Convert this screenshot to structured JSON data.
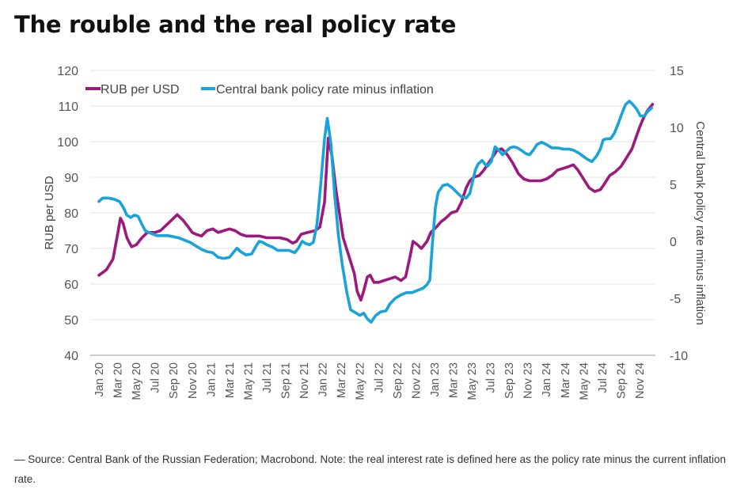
{
  "title": "The rouble and the real policy rate",
  "source": "— Source: Central Bank of the Russian Federation; Macrobond. Note: the real interest rate is defined here as the policy rate minus the current inflation rate.",
  "chart_data": {
    "type": "line",
    "x": [
      "Jan 20",
      "Mar 20",
      "May 20",
      "Jul 20",
      "Sep 20",
      "Nov 20",
      "Jan 21",
      "Mar 21",
      "May 21",
      "Jul 21",
      "Sep 21",
      "Nov 21",
      "Jan 22",
      "Mar 22",
      "May 22",
      "Jul 22",
      "Sep 22",
      "Nov 22",
      "Jan 23",
      "Mar 23",
      "May 23",
      "Jul 23",
      "Sep 23",
      "Nov 23",
      "Jan 24",
      "Mar 24",
      "May 24",
      "Jul 24",
      "Sep 24",
      "Nov 24"
    ],
    "y_left": {
      "label": "RUB per USD",
      "ylim": [
        40,
        120
      ],
      "ticks": [
        40,
        50,
        60,
        70,
        80,
        90,
        100,
        110,
        120
      ]
    },
    "y_right": {
      "label": "Central bank policy rate minus inflation",
      "ylim": [
        -10,
        15
      ],
      "ticks": [
        -10,
        -5,
        0,
        5,
        10,
        15
      ]
    },
    "grid": true,
    "legend_position": "top-left",
    "series": [
      {
        "name": "RUB per USD",
        "axis": "left",
        "color": "#9c1a7e",
        "points": [
          [
            0,
            62.5
          ],
          [
            0.4,
            64
          ],
          [
            0.75,
            67
          ],
          [
            1.0,
            74
          ],
          [
            1.15,
            78.5
          ],
          [
            1.3,
            77
          ],
          [
            1.5,
            73
          ],
          [
            1.75,
            70.5
          ],
          [
            2.0,
            71
          ],
          [
            2.3,
            73
          ],
          [
            2.6,
            74.5
          ],
          [
            3.0,
            74.5
          ],
          [
            3.3,
            75
          ],
          [
            3.6,
            76.5
          ],
          [
            4.0,
            78.5
          ],
          [
            4.2,
            79.5
          ],
          [
            4.5,
            78
          ],
          [
            4.8,
            76
          ],
          [
            5.0,
            74.5
          ],
          [
            5.2,
            74
          ],
          [
            5.5,
            73.5
          ],
          [
            5.8,
            75
          ],
          [
            6.1,
            75.5
          ],
          [
            6.4,
            74.5
          ],
          [
            6.7,
            75
          ],
          [
            7.0,
            75.5
          ],
          [
            7.3,
            75
          ],
          [
            7.6,
            74
          ],
          [
            7.9,
            73.5
          ],
          [
            8.2,
            73.5
          ],
          [
            8.6,
            73.5
          ],
          [
            9.0,
            73
          ],
          [
            9.3,
            73
          ],
          [
            9.7,
            73
          ],
          [
            10.1,
            72.5
          ],
          [
            10.4,
            71.5
          ],
          [
            10.6,
            72
          ],
          [
            10.85,
            74
          ],
          [
            11.2,
            74.5
          ],
          [
            11.6,
            75
          ],
          [
            11.85,
            76
          ],
          [
            12.1,
            83
          ],
          [
            12.3,
            101
          ],
          [
            12.5,
            96
          ],
          [
            12.7,
            87
          ],
          [
            12.9,
            80
          ],
          [
            13.1,
            73
          ],
          [
            13.4,
            68
          ],
          [
            13.7,
            63
          ],
          [
            13.85,
            58
          ],
          [
            14.05,
            55.5
          ],
          [
            14.2,
            58
          ],
          [
            14.4,
            62
          ],
          [
            14.55,
            62.5
          ],
          [
            14.75,
            60.5
          ],
          [
            15.0,
            60.5
          ],
          [
            15.3,
            61
          ],
          [
            15.6,
            61.5
          ],
          [
            15.9,
            62
          ],
          [
            16.2,
            61
          ],
          [
            16.45,
            62
          ],
          [
            16.7,
            68
          ],
          [
            16.85,
            72
          ],
          [
            17.1,
            71
          ],
          [
            17.3,
            70
          ],
          [
            17.6,
            72
          ],
          [
            17.8,
            74.5
          ],
          [
            18.1,
            76
          ],
          [
            18.35,
            77.5
          ],
          [
            18.6,
            78.5
          ],
          [
            18.9,
            80
          ],
          [
            19.2,
            80.5
          ],
          [
            19.45,
            83
          ],
          [
            19.7,
            87
          ],
          [
            19.9,
            89
          ],
          [
            20.1,
            90
          ],
          [
            20.4,
            90.5
          ],
          [
            20.65,
            92
          ],
          [
            20.9,
            94
          ],
          [
            21.1,
            95.5
          ],
          [
            21.35,
            97.5
          ],
          [
            21.6,
            98
          ],
          [
            21.8,
            97
          ],
          [
            21.95,
            96
          ],
          [
            22.2,
            94
          ],
          [
            22.5,
            91
          ],
          [
            22.8,
            89.5
          ],
          [
            23.1,
            89
          ],
          [
            23.4,
            89
          ],
          [
            23.7,
            89
          ],
          [
            24.0,
            89.5
          ],
          [
            24.3,
            90.5
          ],
          [
            24.6,
            92
          ],
          [
            24.9,
            92.5
          ],
          [
            25.2,
            93
          ],
          [
            25.45,
            93.5
          ],
          [
            25.7,
            92
          ],
          [
            26.0,
            89.5
          ],
          [
            26.3,
            87
          ],
          [
            26.6,
            86
          ],
          [
            26.9,
            86.5
          ],
          [
            27.1,
            88
          ],
          [
            27.4,
            90.5
          ],
          [
            27.7,
            91.5
          ],
          [
            28.0,
            93
          ],
          [
            28.3,
            95.5
          ],
          [
            28.6,
            98
          ],
          [
            28.8,
            101
          ],
          [
            29.0,
            104
          ],
          [
            29.2,
            106.5
          ],
          [
            29.4,
            108.5
          ],
          [
            29.7,
            110.5
          ]
        ]
      },
      {
        "name": "Central bank policy rate minus inflation",
        "axis": "right",
        "color": "#1aa3d9",
        "points": [
          [
            0,
            3.5
          ],
          [
            0.2,
            3.8
          ],
          [
            0.5,
            3.8
          ],
          [
            0.8,
            3.7
          ],
          [
            1.1,
            3.5
          ],
          [
            1.3,
            3
          ],
          [
            1.5,
            2.3
          ],
          [
            1.7,
            2.1
          ],
          [
            1.9,
            2.3
          ],
          [
            2.1,
            2.2
          ],
          [
            2.3,
            1.5
          ],
          [
            2.5,
            0.9
          ],
          [
            2.8,
            0.7
          ],
          [
            3.1,
            0.5
          ],
          [
            3.4,
            0.5
          ],
          [
            3.7,
            0.5
          ],
          [
            4.0,
            0.4
          ],
          [
            4.3,
            0.3
          ],
          [
            4.6,
            0.1
          ],
          [
            4.9,
            -0.1
          ],
          [
            5.2,
            -0.4
          ],
          [
            5.5,
            -0.7
          ],
          [
            5.8,
            -0.9
          ],
          [
            6.1,
            -1.0
          ],
          [
            6.4,
            -1.4
          ],
          [
            6.7,
            -1.5
          ],
          [
            7.0,
            -1.4
          ],
          [
            7.2,
            -1.0
          ],
          [
            7.4,
            -0.6
          ],
          [
            7.6,
            -0.9
          ],
          [
            7.9,
            -1.2
          ],
          [
            8.2,
            -1.1
          ],
          [
            8.4,
            -0.5
          ],
          [
            8.6,
            0
          ],
          [
            8.8,
            -0.1
          ],
          [
            9.0,
            -0.3
          ],
          [
            9.3,
            -0.5
          ],
          [
            9.6,
            -0.8
          ],
          [
            9.9,
            -0.8
          ],
          [
            10.2,
            -0.8
          ],
          [
            10.5,
            -1.0
          ],
          [
            10.7,
            -0.6
          ],
          [
            10.9,
            0
          ],
          [
            11.1,
            -0.2
          ],
          [
            11.3,
            -0.3
          ],
          [
            11.5,
            -0.1
          ],
          [
            11.7,
            1.5
          ],
          [
            11.9,
            5
          ],
          [
            12.1,
            9
          ],
          [
            12.25,
            10.8
          ],
          [
            12.45,
            8.5
          ],
          [
            12.65,
            4
          ],
          [
            12.85,
            0.5
          ],
          [
            13.05,
            -2
          ],
          [
            13.3,
            -4.5
          ],
          [
            13.5,
            -6.0
          ],
          [
            13.8,
            -6.3
          ],
          [
            14.0,
            -6.5
          ],
          [
            14.2,
            -6.3
          ],
          [
            14.4,
            -6.8
          ],
          [
            14.6,
            -7.1
          ],
          [
            14.85,
            -6.5
          ],
          [
            15.1,
            -6.2
          ],
          [
            15.4,
            -6.1
          ],
          [
            15.6,
            -5.5
          ],
          [
            15.9,
            -5.0
          ],
          [
            16.2,
            -4.7
          ],
          [
            16.5,
            -4.5
          ],
          [
            16.8,
            -4.5
          ],
          [
            17.1,
            -4.3
          ],
          [
            17.4,
            -4.1
          ],
          [
            17.6,
            -3.8
          ],
          [
            17.75,
            -3.4
          ],
          [
            17.9,
            0
          ],
          [
            18.05,
            3
          ],
          [
            18.2,
            4.3
          ],
          [
            18.45,
            4.9
          ],
          [
            18.7,
            5.0
          ],
          [
            18.95,
            4.7
          ],
          [
            19.2,
            4.3
          ],
          [
            19.45,
            3.9
          ],
          [
            19.7,
            3.8
          ],
          [
            19.9,
            4.2
          ],
          [
            20.05,
            5.3
          ],
          [
            20.2,
            6.3
          ],
          [
            20.35,
            6.8
          ],
          [
            20.55,
            7.1
          ],
          [
            20.7,
            6.8
          ],
          [
            20.85,
            6.6
          ],
          [
            21.05,
            7.0
          ],
          [
            21.25,
            8.3
          ],
          [
            21.45,
            8.0
          ],
          [
            21.65,
            7.6
          ],
          [
            21.85,
            7.9
          ],
          [
            22.05,
            8.2
          ],
          [
            22.25,
            8.3
          ],
          [
            22.45,
            8.2
          ],
          [
            22.65,
            8.0
          ],
          [
            22.9,
            7.7
          ],
          [
            23.1,
            7.6
          ],
          [
            23.3,
            8.0
          ],
          [
            23.5,
            8.5
          ],
          [
            23.75,
            8.7
          ],
          [
            24.0,
            8.5
          ],
          [
            24.3,
            8.2
          ],
          [
            24.6,
            8.2
          ],
          [
            24.9,
            8.1
          ],
          [
            25.2,
            8.1
          ],
          [
            25.45,
            8.0
          ],
          [
            25.7,
            7.8
          ],
          [
            25.95,
            7.5
          ],
          [
            26.2,
            7.2
          ],
          [
            26.45,
            7.0
          ],
          [
            26.7,
            7.5
          ],
          [
            26.9,
            8.1
          ],
          [
            27.05,
            8.9
          ],
          [
            27.25,
            9.0
          ],
          [
            27.45,
            9.0
          ],
          [
            27.65,
            9.5
          ],
          [
            27.85,
            10.3
          ],
          [
            28.05,
            11.2
          ],
          [
            28.25,
            12.0
          ],
          [
            28.45,
            12.3
          ],
          [
            28.65,
            12.0
          ],
          [
            28.85,
            11.6
          ],
          [
            29.05,
            11.0
          ],
          [
            29.25,
            11.0
          ],
          [
            29.45,
            11.4
          ],
          [
            29.65,
            11.7
          ]
        ]
      }
    ]
  }
}
